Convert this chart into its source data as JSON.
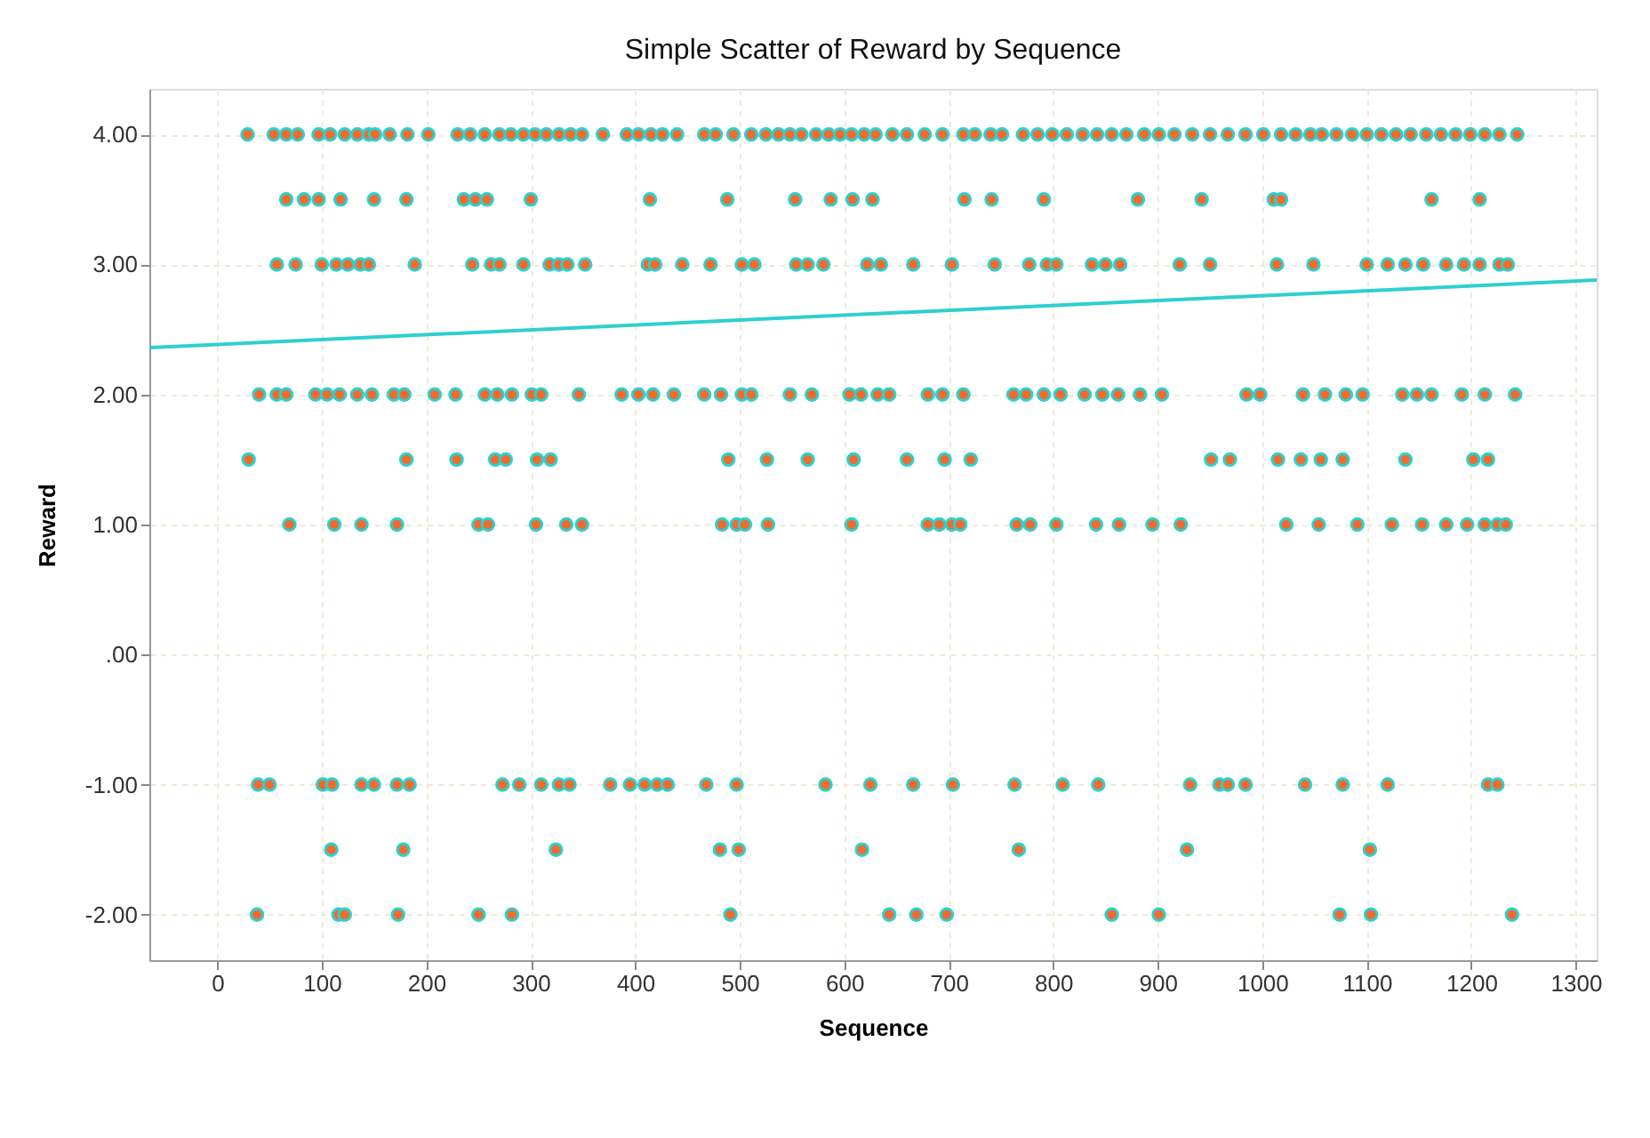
{
  "chart_data": {
    "type": "scatter",
    "title": "Simple Scatter of Reward by Sequence",
    "xlabel": "Sequence",
    "ylabel": "Reward",
    "xlim": [
      -65,
      1320
    ],
    "xticks": [
      0,
      100,
      200,
      300,
      400,
      500,
      600,
      700,
      800,
      900,
      1000,
      1100,
      1200,
      1300
    ],
    "ylim": [
      -2.35,
      4.35
    ],
    "yticks": [
      {
        "value": -2,
        "label": "-2.00"
      },
      {
        "value": -1,
        "label": "-1.00"
      },
      {
        "value": 0,
        "label": ".00"
      },
      {
        "value": 1,
        "label": "1.00"
      },
      {
        "value": 2,
        "label": "2.00"
      },
      {
        "value": 3,
        "label": "3.00"
      },
      {
        "value": 4,
        "label": "4.00"
      }
    ],
    "grid": true,
    "series": [
      {
        "color": "#f26b2a",
        "marker": "circle",
        "x": [
          29,
          54,
          66,
          77,
          97,
          108,
          122,
          134,
          145,
          151,
          165,
          182,
          202,
          230,
          242,
          256,
          270,
          281,
          293,
          304,
          315,
          327,
          338,
          349,
          369,
          392,
          403,
          415,
          426,
          440,
          466,
          477,
          494,
          511,
          525,
          537,
          548,
          559,
          573,
          585,
          596,
          607,
          619,
          630,
          646,
          660,
          677,
          694,
          714,
          725,
          740,
          751,
          771,
          785,
          799,
          813,
          828,
          842,
          856,
          870,
          887,
          901,
          916,
          933,
          950,
          967,
          984,
          1001,
          1018,
          1032,
          1046,
          1057,
          1071,
          1086,
          1100,
          1114,
          1128,
          1142,
          1157,
          1171,
          1185,
          1199,
          1213,
          1227,
          1244
        ],
        "values": [
          4,
          4,
          4,
          4,
          4,
          4,
          4,
          4,
          4,
          4,
          4,
          4,
          4,
          4,
          4,
          4,
          4,
          4,
          4,
          4,
          4,
          4,
          4,
          4,
          4,
          4,
          4,
          4,
          4,
          4,
          4,
          4,
          4,
          4,
          4,
          4,
          4,
          4,
          4,
          4,
          4,
          4,
          4,
          4,
          4,
          4,
          4,
          4,
          4,
          4,
          4,
          4,
          4,
          4,
          4,
          4,
          4,
          4,
          4,
          4,
          4,
          4,
          4,
          4,
          4,
          4,
          4,
          4,
          4,
          4,
          4,
          4,
          4,
          4,
          4,
          4,
          4,
          4,
          4,
          4,
          4,
          4,
          4,
          4,
          4
        ]
      },
      {
        "color": "#f26b2a",
        "marker": "circle",
        "x": [
          66,
          83,
          97,
          118,
          150,
          181,
          236,
          247,
          258,
          300,
          414,
          488,
          553,
          587,
          608,
          627,
          715,
          741,
          791,
          881,
          942,
          1011,
          1018,
          1162,
          1208
        ],
        "values": [
          3.5,
          3.5,
          3.5,
          3.5,
          3.5,
          3.5,
          3.5,
          3.5,
          3.5,
          3.5,
          3.5,
          3.5,
          3.5,
          3.5,
          3.5,
          3.5,
          3.5,
          3.5,
          3.5,
          3.5,
          3.5,
          3.5,
          3.5,
          3.5,
          3.5
        ]
      },
      {
        "color": "#f26b2a",
        "marker": "circle",
        "x": [
          57,
          75,
          100,
          114,
          125,
          137,
          145,
          189,
          244,
          262,
          270,
          293,
          318,
          327,
          335,
          352,
          412,
          419,
          445,
          472,
          502,
          514,
          554,
          565,
          580,
          622,
          635,
          666,
          703,
          744,
          777,
          794,
          803,
          837,
          850,
          864,
          921,
          950,
          1014,
          1049,
          1100,
          1120,
          1137,
          1154,
          1176,
          1193,
          1208,
          1227,
          1235
        ],
        "values": [
          3,
          3,
          3,
          3,
          3,
          3,
          3,
          3,
          3,
          3,
          3,
          3,
          3,
          3,
          3,
          3,
          3,
          3,
          3,
          3,
          3,
          3,
          3,
          3,
          3,
          3,
          3,
          3,
          3,
          3,
          3,
          3,
          3,
          3,
          3,
          3,
          3,
          3,
          3,
          3,
          3,
          3,
          3,
          3,
          3,
          3,
          3,
          3,
          3
        ]
      },
      {
        "color": "#f26b2a",
        "marker": "circle",
        "x": [
          40,
          57,
          66,
          94,
          105,
          117,
          134,
          148,
          169,
          179,
          208,
          228,
          256,
          268,
          282,
          301,
          310,
          346,
          387,
          403,
          417,
          437,
          466,
          482,
          502,
          511,
          548,
          569,
          605,
          616,
          632,
          643,
          680,
          694,
          714,
          762,
          774,
          791,
          807,
          830,
          847,
          862,
          883,
          904,
          985,
          998,
          1039,
          1060,
          1080,
          1096,
          1134,
          1148,
          1162,
          1191,
          1213,
          1242
        ],
        "values": [
          2,
          2,
          2,
          2,
          2,
          2,
          2,
          2,
          2,
          2,
          2,
          2,
          2,
          2,
          2,
          2,
          2,
          2,
          2,
          2,
          2,
          2,
          2,
          2,
          2,
          2,
          2,
          2,
          2,
          2,
          2,
          2,
          2,
          2,
          2,
          2,
          2,
          2,
          2,
          2,
          2,
          2,
          2,
          2,
          2,
          2,
          2,
          2,
          2,
          2,
          2,
          2,
          2,
          2,
          2,
          2
        ]
      },
      {
        "color": "#f26b2a",
        "marker": "circle",
        "x": [
          30,
          181,
          229,
          266,
          276,
          306,
          319,
          489,
          526,
          565,
          609,
          660,
          696,
          721,
          951,
          969,
          1015,
          1037,
          1056,
          1077,
          1137,
          1202,
          1216
        ],
        "values": [
          1.5,
          1.5,
          1.5,
          1.5,
          1.5,
          1.5,
          1.5,
          1.5,
          1.5,
          1.5,
          1.5,
          1.5,
          1.5,
          1.5,
          1.5,
          1.5,
          1.5,
          1.5,
          1.5,
          1.5,
          1.5,
          1.5,
          1.5
        ]
      },
      {
        "color": "#f26b2a",
        "marker": "circle",
        "x": [
          69,
          112,
          138,
          172,
          250,
          259,
          305,
          334,
          349,
          483,
          497,
          505,
          527,
          607,
          680,
          691,
          703,
          711,
          765,
          778,
          803,
          841,
          863,
          895,
          922,
          1023,
          1054,
          1091,
          1124,
          1153,
          1176,
          1196,
          1213,
          1225,
          1233
        ],
        "values": [
          1,
          1,
          1,
          1,
          1,
          1,
          1,
          1,
          1,
          1,
          1,
          1,
          1,
          1,
          1,
          1,
          1,
          1,
          1,
          1,
          1,
          1,
          1,
          1,
          1,
          1,
          1,
          1,
          1,
          1,
          1,
          1,
          1,
          1,
          1
        ]
      },
      {
        "color": "#f26b2a",
        "marker": "circle",
        "x": [
          39,
          50,
          101,
          110,
          138,
          150,
          172,
          184,
          273,
          289,
          310,
          327,
          337,
          376,
          395,
          409,
          421,
          431,
          468,
          497,
          582,
          625,
          666,
          704,
          763,
          809,
          843,
          931,
          959,
          967,
          984,
          1041,
          1077,
          1120,
          1216,
          1225
        ],
        "values": [
          -1,
          -1,
          -1,
          -1,
          -1,
          -1,
          -1,
          -1,
          -1,
          -1,
          -1,
          -1,
          -1,
          -1,
          -1,
          -1,
          -1,
          -1,
          -1,
          -1,
          -1,
          -1,
          -1,
          -1,
          -1,
          -1,
          -1,
          -1,
          -1,
          -1,
          -1,
          -1,
          -1,
          -1,
          -1,
          -1
        ]
      },
      {
        "color": "#f26b2a",
        "marker": "circle",
        "x": [
          109,
          178,
          324,
          481,
          499,
          617,
          767,
          928,
          1103
        ],
        "values": [
          -1.5,
          -1.5,
          -1.5,
          -1.5,
          -1.5,
          -1.5,
          -1.5,
          -1.5,
          -1.5
        ]
      },
      {
        "color": "#f26b2a",
        "marker": "circle",
        "x": [
          38,
          116,
          122,
          173,
          250,
          282,
          491,
          643,
          669,
          698,
          856,
          901,
          1074,
          1104,
          1239
        ],
        "values": [
          -2,
          -2,
          -2,
          -2,
          -2,
          -2,
          -2,
          -2,
          -2,
          -2,
          -2,
          -2,
          -2,
          -2,
          -2
        ]
      },
      {
        "type": "line",
        "color": "#2ecfd0",
        "marker": "none",
        "line_style": "solid",
        "x": [
          -65,
          1320
        ],
        "values": [
          2.36,
          2.88
        ]
      }
    ]
  }
}
